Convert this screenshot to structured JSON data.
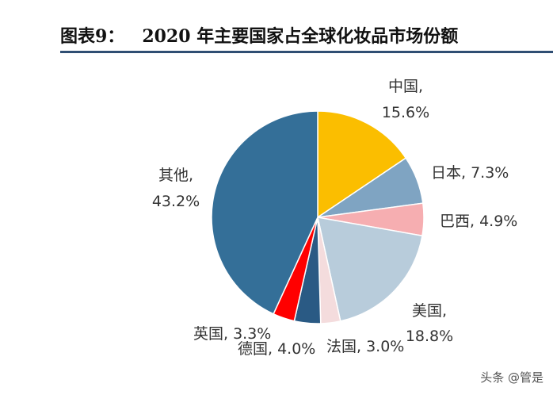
{
  "header": {
    "figure_number": "图表9：",
    "title": "2020 年主要国家占全球化妆品市场份额"
  },
  "chart_data": {
    "type": "pie",
    "title": "2020 年主要国家占全球化妆品市场份额",
    "unit": "%",
    "start": "12 o'clock, clockwise",
    "slices": [
      {
        "name": "中国",
        "value": 15.6,
        "value_label": "15.6%",
        "color": "#fbbe00"
      },
      {
        "name": "日本",
        "value": 7.3,
        "value_label": "7.3%",
        "color": "#7fa4c2"
      },
      {
        "name": "巴西",
        "value": 4.9,
        "value_label": "4.9%",
        "color": "#f6aeb1"
      },
      {
        "name": "美国",
        "value": 18.8,
        "value_label": "18.8%",
        "color": "#b8ccdb"
      },
      {
        "name": "法国",
        "value": 3.0,
        "value_label": "3.0%",
        "color": "#f4dcdd"
      },
      {
        "name": "德国",
        "value": 4.0,
        "value_label": "4.0%",
        "color": "#2a5a84"
      },
      {
        "name": "英国",
        "value": 3.3,
        "value_label": "3.3%",
        "color": "#ff0000"
      },
      {
        "name": "其他",
        "value": 43.2,
        "value_label": "43.2%",
        "color": "#346f98"
      }
    ]
  },
  "watermark": "头条 @管是"
}
